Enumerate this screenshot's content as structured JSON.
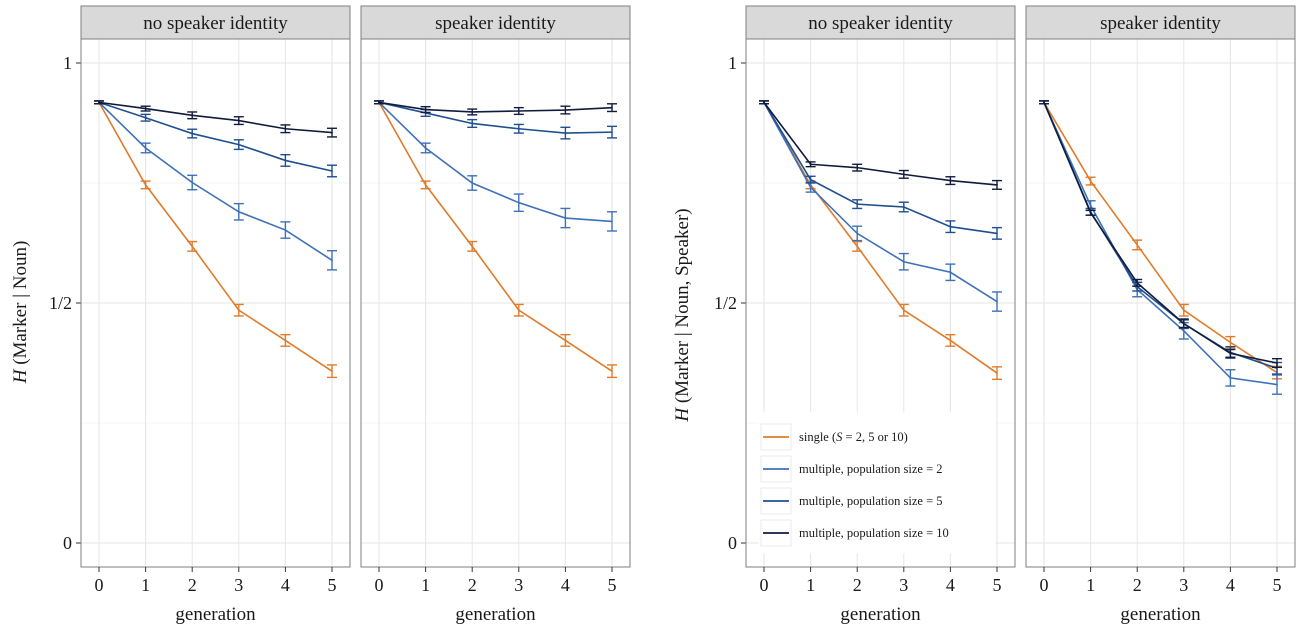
{
  "chart_data": [
    {
      "type": "line",
      "ylabel_italic": "H",
      "ylabel_rest": " (Marker | Noun)",
      "xlabel": "generation",
      "ylim": [
        0,
        1
      ],
      "yticks": [
        {
          "value": 0,
          "label": "0"
        },
        {
          "value": 0.5,
          "label": "1/2"
        },
        {
          "value": 1,
          "label": "1"
        }
      ],
      "x": [
        0,
        1,
        2,
        3,
        4,
        5
      ],
      "facets": [
        {
          "strip": "no speaker identity",
          "series": [
            {
              "key": "single",
              "color": "#e07b2a",
              "values": [
                0.918,
                0.746,
                0.618,
                0.485,
                0.422,
                0.358
              ],
              "err": [
                0.003,
                0.008,
                0.01,
                0.012,
                0.012,
                0.013
              ]
            },
            {
              "key": "pop2",
              "color": "#3f71b8",
              "values": [
                0.918,
                0.823,
                0.751,
                0.69,
                0.652,
                0.589
              ],
              "err": [
                0.003,
                0.01,
                0.015,
                0.017,
                0.017,
                0.02
              ]
            },
            {
              "key": "pop5",
              "color": "#1f4f8f",
              "values": [
                0.918,
                0.886,
                0.853,
                0.83,
                0.797,
                0.775
              ],
              "err": [
                0.003,
                0.007,
                0.009,
                0.01,
                0.012,
                0.012
              ]
            },
            {
              "key": "pop10",
              "color": "#111c3d",
              "values": [
                0.918,
                0.905,
                0.891,
                0.88,
                0.863,
                0.855
              ],
              "err": [
                0.003,
                0.005,
                0.007,
                0.008,
                0.008,
                0.009
              ]
            }
          ]
        },
        {
          "strip": "speaker identity",
          "series": [
            {
              "key": "single",
              "color": "#e07b2a",
              "values": [
                0.918,
                0.746,
                0.618,
                0.485,
                0.422,
                0.358
              ],
              "err": [
                0.003,
                0.008,
                0.01,
                0.012,
                0.012,
                0.013
              ]
            },
            {
              "key": "pop2",
              "color": "#3f71b8",
              "values": [
                0.918,
                0.823,
                0.75,
                0.709,
                0.677,
                0.67
              ],
              "err": [
                0.003,
                0.01,
                0.015,
                0.018,
                0.02,
                0.02
              ]
            },
            {
              "key": "pop5",
              "color": "#1f4f8f",
              "values": [
                0.918,
                0.896,
                0.874,
                0.863,
                0.854,
                0.856
              ],
              "err": [
                0.003,
                0.007,
                0.008,
                0.009,
                0.012,
                0.012
              ]
            },
            {
              "key": "pop10",
              "color": "#111c3d",
              "values": [
                0.918,
                0.903,
                0.898,
                0.9,
                0.902,
                0.907
              ],
              "err": [
                0.003,
                0.006,
                0.006,
                0.007,
                0.008,
                0.008
              ]
            }
          ]
        }
      ]
    },
    {
      "type": "line",
      "ylabel_italic": "H",
      "ylabel_rest": " (Marker | Noun, Speaker)",
      "xlabel": "generation",
      "ylim": [
        0,
        1
      ],
      "yticks": [
        {
          "value": 0,
          "label": "0"
        },
        {
          "value": 0.5,
          "label": "1/2"
        },
        {
          "value": 1,
          "label": "1"
        }
      ],
      "x": [
        0,
        1,
        2,
        3,
        4,
        5
      ],
      "facets": [
        {
          "strip": "no speaker identity",
          "series": [
            {
              "key": "single",
              "color": "#e07b2a",
              "values": [
                0.918,
                0.746,
                0.618,
                0.485,
                0.422,
                0.354
              ],
              "err": [
                0.003,
                0.008,
                0.01,
                0.012,
                0.012,
                0.013
              ]
            },
            {
              "key": "pop2",
              "color": "#3f71b8",
              "values": [
                0.918,
                0.741,
                0.645,
                0.586,
                0.564,
                0.503
              ],
              "err": [
                0.003,
                0.01,
                0.015,
                0.017,
                0.017,
                0.02
              ]
            },
            {
              "key": "pop5",
              "color": "#1f4f8f",
              "values": [
                0.918,
                0.757,
                0.706,
                0.7,
                0.659,
                0.645
              ],
              "err": [
                0.003,
                0.007,
                0.009,
                0.01,
                0.012,
                0.012
              ]
            },
            {
              "key": "pop10",
              "color": "#111c3d",
              "values": [
                0.918,
                0.789,
                0.782,
                0.768,
                0.755,
                0.746
              ],
              "err": [
                0.003,
                0.005,
                0.007,
                0.008,
                0.008,
                0.009
              ]
            }
          ]
        },
        {
          "strip": "speaker identity",
          "series": [
            {
              "key": "single",
              "color": "#e07b2a",
              "values": [
                0.918,
                0.754,
                0.621,
                0.485,
                0.418,
                0.355
              ],
              "err": [
                0.003,
                0.008,
                0.01,
                0.012,
                0.012,
                0.013
              ]
            },
            {
              "key": "pop2",
              "color": "#3f71b8",
              "values": [
                0.918,
                0.703,
                0.528,
                0.442,
                0.344,
                0.33
              ],
              "err": [
                0.003,
                0.01,
                0.015,
                0.017,
                0.017,
                0.02
              ]
            },
            {
              "key": "pop5",
              "color": "#1f4f8f",
              "values": [
                0.918,
                0.69,
                0.534,
                0.457,
                0.397,
                0.364
              ],
              "err": [
                0.003,
                0.007,
                0.009,
                0.01,
                0.012,
                0.012
              ]
            },
            {
              "key": "pop10",
              "color": "#111c3d",
              "values": [
                0.918,
                0.688,
                0.542,
                0.457,
                0.395,
                0.375
              ],
              "err": [
                0.003,
                0.005,
                0.007,
                0.008,
                0.008,
                0.009
              ]
            }
          ]
        }
      ]
    }
  ],
  "legend": {
    "position": "inside bottom-left of right figure",
    "items": [
      {
        "key": "single",
        "color": "#e07b2a",
        "label_prefix": "single (",
        "label_italic": "S",
        "label_suffix": " = 2, 5 or 10)"
      },
      {
        "key": "pop2",
        "color": "#3f71b8",
        "label": "multiple, population size = 2"
      },
      {
        "key": "pop5",
        "color": "#1f4f8f",
        "label": "multiple, population size = 5"
      },
      {
        "key": "pop10",
        "color": "#111c3d",
        "label": "multiple, population size = 10"
      }
    ]
  }
}
